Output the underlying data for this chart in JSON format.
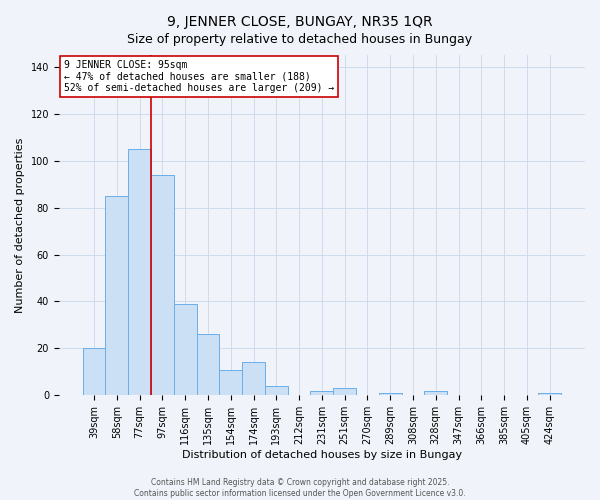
{
  "title": "9, JENNER CLOSE, BUNGAY, NR35 1QR",
  "subtitle": "Size of property relative to detached houses in Bungay",
  "xlabel": "Distribution of detached houses by size in Bungay",
  "ylabel": "Number of detached properties",
  "bar_labels": [
    "39sqm",
    "58sqm",
    "77sqm",
    "97sqm",
    "116sqm",
    "135sqm",
    "154sqm",
    "174sqm",
    "193sqm",
    "212sqm",
    "231sqm",
    "251sqm",
    "270sqm",
    "289sqm",
    "308sqm",
    "328sqm",
    "347sqm",
    "366sqm",
    "385sqm",
    "405sqm",
    "424sqm"
  ],
  "bar_heights": [
    20,
    85,
    105,
    94,
    39,
    26,
    11,
    14,
    4,
    0,
    2,
    3,
    0,
    1,
    0,
    2,
    0,
    0,
    0,
    0,
    1
  ],
  "bar_color": "#cce0f5",
  "bar_edge_color": "#6aaee8",
  "vline_x_index": 3,
  "vline_color": "#cc0000",
  "ylim": [
    0,
    145
  ],
  "yticks": [
    0,
    20,
    40,
    60,
    80,
    100,
    120,
    140
  ],
  "annotation_title": "9 JENNER CLOSE: 95sqm",
  "annotation_line1": "← 47% of detached houses are smaller (188)",
  "annotation_line2": "52% of semi-detached houses are larger (209) →",
  "annotation_box_color": "#ffffff",
  "annotation_box_edge": "#cc0000",
  "footer1": "Contains HM Land Registry data © Crown copyright and database right 2025.",
  "footer2": "Contains public sector information licensed under the Open Government Licence v3.0.",
  "background_color": "#f0f4fa",
  "grid_color": "#c8d8ec",
  "title_fontsize": 10,
  "subtitle_fontsize": 9,
  "axis_label_fontsize": 8,
  "tick_fontsize": 7,
  "annotation_fontsize": 7,
  "footer_fontsize": 5.5
}
